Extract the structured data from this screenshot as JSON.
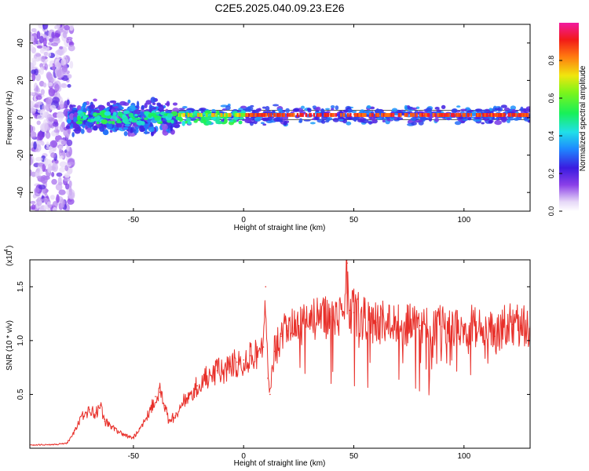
{
  "title": "C2E5.2025.040.09.23.E26",
  "chart_data": [
    {
      "type": "heatmap",
      "xlabel": "Height of straight line (km)",
      "ylabel": "Frequency (Hz)",
      "xlim": [
        -97,
        130
      ],
      "ylim": [
        -50,
        50
      ],
      "xticks": [
        -50,
        0,
        50,
        100
      ],
      "yticks": [
        -40,
        -20,
        0,
        20,
        40
      ],
      "grid": false,
      "colorbar": {
        "label": "Normalized spectral amplitude",
        "range": [
          0.0,
          1.0
        ],
        "ticks": [
          0.0,
          0.2,
          0.4,
          0.6,
          0.8
        ],
        "tick_labels": [
          "0.0",
          "0.2",
          "0.4",
          "0.6",
          "0.8"
        ],
        "colormap": "rainbow (white-violet-blue-cyan-green-yellow-red-magenta)"
      },
      "center_line": {
        "band_low_hz": -1.0,
        "band_high_hz": 4.0,
        "peak_frequency_hz": 1.5
      },
      "regions": [
        {
          "x_range": [
            -97,
            -78
          ],
          "description": "scattered broadband noise",
          "amplitude": 0.15
        },
        {
          "x_range": [
            -78,
            -30
          ],
          "description": "noisy band around 0 Hz",
          "amplitude": 0.35
        },
        {
          "x_range": [
            -30,
            0
          ],
          "description": "band with green/yellow core",
          "amplitude": 0.7
        },
        {
          "x_range": [
            0,
            130
          ],
          "description": "strong narrow red line",
          "amplitude": 0.95
        }
      ]
    },
    {
      "type": "line",
      "xlabel": "Height of straight line (km)",
      "ylabel": "SNR (10 * v/v)",
      "y_multiplier_label": "(x10",
      "y_multiplier_exponent": "4",
      "xlim": [
        -97,
        130
      ],
      "ylim": [
        0,
        17500
      ],
      "xticks": [
        -50,
        0,
        50,
        100
      ],
      "yticks": [
        5000,
        10000,
        15000
      ],
      "ytick_labels": [
        "0.5",
        "1.0",
        "1.5"
      ],
      "grid": false,
      "series": [
        {
          "color": "#e8302a",
          "x": [
            -97,
            -85,
            -80,
            -76,
            -73,
            -70,
            -67,
            -65,
            -63,
            -60,
            -57,
            -54,
            -50,
            -46,
            -42,
            -40,
            -38,
            -36,
            -34,
            -31,
            -28,
            -24,
            -21,
            -18,
            -15,
            -12,
            -9,
            -6,
            -3,
            0,
            3,
            6,
            9,
            10,
            11,
            12,
            14,
            17,
            20,
            25,
            30,
            35,
            40,
            45,
            47,
            48,
            50,
            55,
            60,
            70,
            80,
            90,
            100,
            105,
            110,
            114,
            118,
            122,
            126,
            130
          ],
          "y": [
            300,
            350,
            500,
            1800,
            3000,
            3600,
            3300,
            4000,
            2500,
            2000,
            1600,
            1200,
            1000,
            2200,
            3800,
            4800,
            5200,
            4000,
            2600,
            3000,
            4200,
            5200,
            5800,
            6400,
            6800,
            7200,
            7000,
            7600,
            8000,
            8200,
            8600,
            8800,
            9400,
            15000,
            6500,
            5000,
            9000,
            10400,
            10900,
            11400,
            11900,
            12000,
            12200,
            12700,
            17200,
            12800,
            12600,
            12100,
            11700,
            11600,
            11400,
            11300,
            11500,
            11400,
            11200,
            10400,
            11300,
            11500,
            11400,
            11300
          ]
        }
      ]
    }
  ]
}
